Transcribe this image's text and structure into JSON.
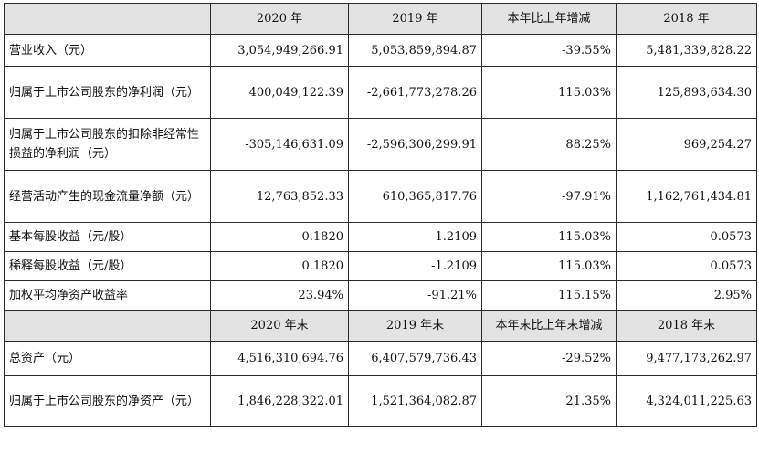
{
  "header1": [
    "",
    "2020 年",
    "2019 年",
    "本年比上年增减",
    "2018 年"
  ],
  "header2": [
    "",
    "2020 年末",
    "2019 年末",
    "本年末比上年末增减",
    "2018 年末"
  ],
  "rows1": [
    {
      "label": "营业收入（元）",
      "v2020": "3,054,949,266.91",
      "v2019": "5,053,859,894.87",
      "change": "-39.55%",
      "v2018": "5,481,339,828.22"
    },
    {
      "label": "归属于上市公司股东的净利润（元）",
      "v2020": "400,049,122.39",
      "v2019": "-2,661,773,278.26",
      "change": "115.03%",
      "v2018": "125,893,634.30"
    },
    {
      "label": "归属于上市公司股东的扣除非经常性损益的净利润（元）",
      "v2020": "-305,146,631.09",
      "v2019": "-2,596,306,299.91",
      "change": "88.25%",
      "v2018": "969,254.27"
    },
    {
      "label": "经营活动产生的现金流量净额（元）",
      "v2020": "12,763,852.33",
      "v2019": "610,365,817.76",
      "change": "-97.91%",
      "v2018": "1,162,761,434.81"
    },
    {
      "label": "基本每股收益（元/股）",
      "v2020": "0.1820",
      "v2019": "-1.2109",
      "change": "115.03%",
      "v2018": "0.0573"
    },
    {
      "label": "稀释每股收益（元/股）",
      "v2020": "0.1820",
      "v2019": "-1.2109",
      "change": "115.03%",
      "v2018": "0.0573"
    },
    {
      "label": "加权平均净资产收益率",
      "v2020": "23.94%",
      "v2019": "-91.21%",
      "change": "115.15%",
      "v2018": "2.95%"
    }
  ],
  "rows2": [
    {
      "label": "总资产（元）",
      "v2020": "4,516,310,694.76",
      "v2019": "6,407,579,736.43",
      "change": "-29.52%",
      "v2018": "9,477,173,262.97"
    },
    {
      "label": "归属于上市公司股东的净资产（元）",
      "v2020": "1,846,228,322.01",
      "v2019": "1,521,364,082.87",
      "change": "21.35%",
      "v2018": "4,324,011,225.63"
    }
  ]
}
